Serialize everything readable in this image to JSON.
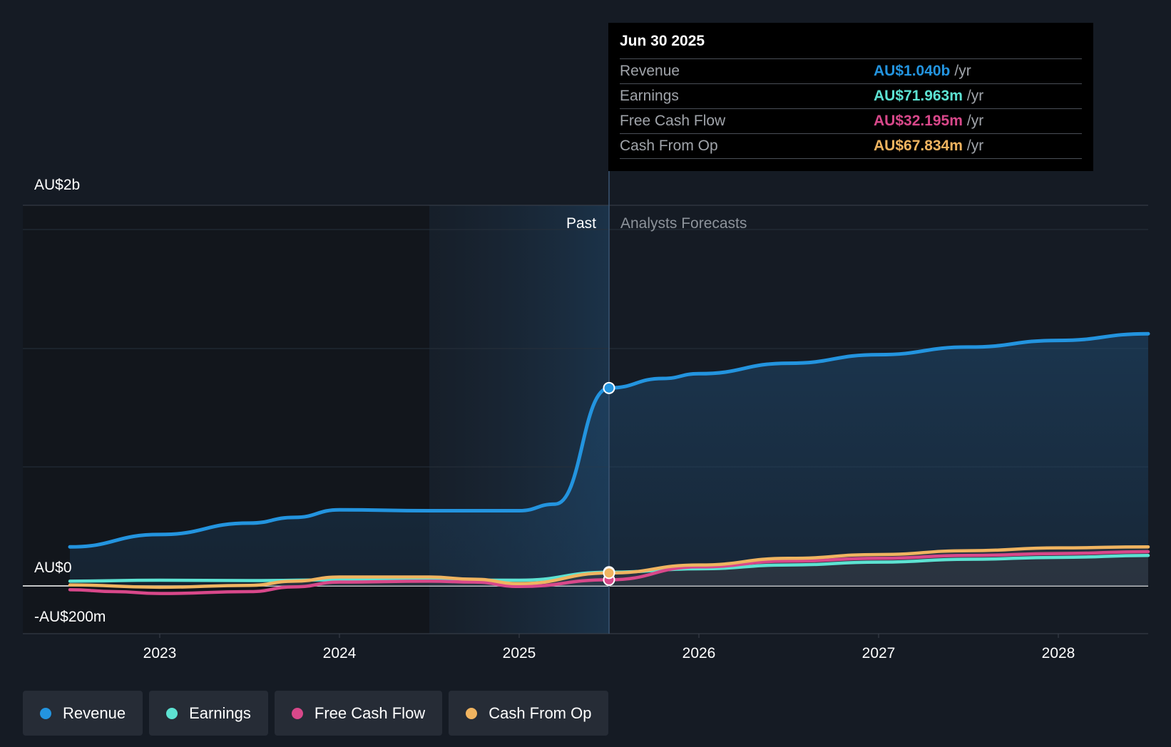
{
  "chart_data": {
    "type": "line",
    "x_ticks": [
      "2023",
      "2024",
      "2025",
      "2026",
      "2027",
      "2028"
    ],
    "y_ticks": [
      "AU$2b",
      "AU$0",
      "-AU$200m"
    ],
    "past_label": "Past",
    "forecast_label": "Analysts Forecasts",
    "series": [
      {
        "name": "Revenue",
        "color": "#2394df",
        "points": [
          [
            2022.5,
            0.205
          ],
          [
            2023.0,
            0.27
          ],
          [
            2023.5,
            0.33
          ],
          [
            2023.75,
            0.36
          ],
          [
            2024.0,
            0.4
          ],
          [
            2024.5,
            0.395
          ],
          [
            2025.0,
            0.395
          ],
          [
            2025.2,
            0.43
          ],
          [
            2025.5,
            1.04
          ],
          [
            2025.8,
            1.09
          ],
          [
            2026.0,
            1.115
          ],
          [
            2026.5,
            1.17
          ],
          [
            2027.0,
            1.215
          ],
          [
            2027.5,
            1.255
          ],
          [
            2028.0,
            1.29
          ],
          [
            2028.5,
            1.325
          ]
        ]
      },
      {
        "name": "Earnings",
        "color": "#5de2d2",
        "points": [
          [
            2022.5,
            0.025
          ],
          [
            2023.0,
            0.03
          ],
          [
            2023.5,
            0.028
          ],
          [
            2024.0,
            0.032
          ],
          [
            2024.5,
            0.031
          ],
          [
            2025.0,
            0.03
          ],
          [
            2025.5,
            0.072
          ],
          [
            2026.0,
            0.09
          ],
          [
            2026.5,
            0.11
          ],
          [
            2027.0,
            0.125
          ],
          [
            2027.5,
            0.14
          ],
          [
            2028.0,
            0.15
          ],
          [
            2028.5,
            0.16
          ]
        ]
      },
      {
        "name": "Free Cash Flow",
        "color": "#d8488a",
        "points": [
          [
            2022.5,
            -0.02
          ],
          [
            2022.75,
            -0.03
          ],
          [
            2023.0,
            -0.04
          ],
          [
            2023.5,
            -0.03
          ],
          [
            2023.75,
            -0.005
          ],
          [
            2024.0,
            0.02
          ],
          [
            2024.5,
            0.025
          ],
          [
            2024.75,
            0.02
          ],
          [
            2025.0,
            -0.003
          ],
          [
            2025.5,
            0.0322
          ],
          [
            2026.0,
            0.1
          ],
          [
            2026.5,
            0.13
          ],
          [
            2027.0,
            0.145
          ],
          [
            2027.5,
            0.16
          ],
          [
            2028.0,
            0.17
          ],
          [
            2028.5,
            0.18
          ]
        ]
      },
      {
        "name": "Cash From Op",
        "color": "#f0b460",
        "points": [
          [
            2022.5,
            0.005
          ],
          [
            2023.0,
            -0.007
          ],
          [
            2023.5,
            0.003
          ],
          [
            2023.75,
            0.025
          ],
          [
            2024.0,
            0.047
          ],
          [
            2024.5,
            0.047
          ],
          [
            2024.75,
            0.035
          ],
          [
            2025.0,
            0.012
          ],
          [
            2025.5,
            0.0678
          ],
          [
            2026.0,
            0.11
          ],
          [
            2026.5,
            0.145
          ],
          [
            2027.0,
            0.165
          ],
          [
            2027.5,
            0.185
          ],
          [
            2028.0,
            0.2
          ],
          [
            2028.5,
            0.205
          ]
        ]
      }
    ],
    "tooltip": {
      "date": "Jun 30 2025",
      "unit": "/yr",
      "rows": [
        {
          "label": "Revenue",
          "value": "AU$1.040b",
          "color": "#2394df"
        },
        {
          "label": "Earnings",
          "value": "AU$71.963m",
          "color": "#5de2d2"
        },
        {
          "label": "Free Cash Flow",
          "value": "AU$32.195m",
          "color": "#d8488a"
        },
        {
          "label": "Cash From Op",
          "value": "AU$67.834m",
          "color": "#f0b460"
        }
      ]
    },
    "legend": [
      {
        "label": "Revenue",
        "color": "#2394df"
      },
      {
        "label": "Earnings",
        "color": "#5de2d2"
      },
      {
        "label": "Free Cash Flow",
        "color": "#d8488a"
      },
      {
        "label": "Cash From Op",
        "color": "#f0b460"
      }
    ]
  }
}
